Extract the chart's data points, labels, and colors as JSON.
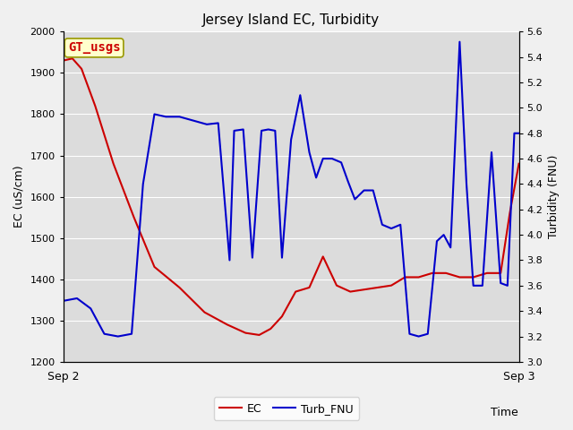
{
  "title": "Jersey Island EC, Turbidity",
  "xlabel": "Time",
  "ylabel_left": "EC (uS/cm)",
  "ylabel_right": "Turbidity (FNU)",
  "watermark": "GT_usgs",
  "ylim_left": [
    1200,
    2000
  ],
  "ylim_right": [
    3.0,
    5.6
  ],
  "fig_bg_color": "#f0f0f0",
  "plot_bg_color": "#dcdcdc",
  "xtick_labels": [
    "Sep 2",
    "Sep 3"
  ],
  "xtick_positions": [
    0.0,
    1.0
  ],
  "ec_color": "#cc0000",
  "turb_color": "#0000cc",
  "ec_data_x": [
    0.0,
    0.02,
    0.04,
    0.07,
    0.11,
    0.155,
    0.2,
    0.255,
    0.31,
    0.36,
    0.4,
    0.43,
    0.455,
    0.48,
    0.51,
    0.54,
    0.57,
    0.6,
    0.63,
    0.66,
    0.69,
    0.72,
    0.75,
    0.78,
    0.81,
    0.84,
    0.87,
    0.9,
    0.93,
    0.96,
    0.98,
    1.0
  ],
  "ec_data_y": [
    1930,
    1935,
    1910,
    1820,
    1680,
    1550,
    1430,
    1380,
    1320,
    1290,
    1270,
    1265,
    1280,
    1310,
    1370,
    1380,
    1455,
    1385,
    1370,
    1375,
    1380,
    1385,
    1405,
    1405,
    1415,
    1415,
    1405,
    1405,
    1415,
    1415,
    1560,
    1680
  ],
  "turb_data_x": [
    0.0,
    0.03,
    0.06,
    0.09,
    0.12,
    0.15,
    0.175,
    0.2,
    0.225,
    0.255,
    0.285,
    0.315,
    0.34,
    0.365,
    0.375,
    0.395,
    0.415,
    0.435,
    0.45,
    0.465,
    0.48,
    0.5,
    0.52,
    0.54,
    0.555,
    0.57,
    0.59,
    0.61,
    0.625,
    0.64,
    0.66,
    0.68,
    0.7,
    0.72,
    0.74,
    0.76,
    0.78,
    0.8,
    0.82,
    0.835,
    0.85,
    0.87,
    0.885,
    0.9,
    0.92,
    0.94,
    0.96,
    0.975,
    0.99,
    1.0
  ],
  "turb_data_y": [
    3.48,
    3.5,
    3.42,
    3.22,
    3.2,
    3.22,
    4.4,
    4.95,
    4.93,
    4.93,
    4.9,
    4.87,
    4.88,
    3.8,
    4.82,
    4.83,
    3.82,
    4.82,
    4.83,
    4.82,
    3.82,
    4.75,
    5.1,
    4.65,
    4.45,
    4.6,
    4.6,
    4.57,
    4.42,
    4.28,
    4.35,
    4.35,
    4.08,
    4.05,
    4.08,
    3.22,
    3.2,
    3.22,
    3.95,
    4.0,
    3.9,
    5.52,
    4.4,
    3.6,
    3.6,
    4.65,
    3.62,
    3.6,
    4.8,
    4.8
  ],
  "legend_labels": [
    "EC",
    "Turb_FNU"
  ],
  "line_width": 1.5,
  "grid_color": "white",
  "grid_lw": 0.8,
  "title_fontsize": 11,
  "label_fontsize": 9,
  "tick_fontsize": 8,
  "watermark_fontsize": 10,
  "watermark_color": "#cc0000",
  "watermark_bg": "#ffffcc",
  "watermark_edge": "#999900"
}
